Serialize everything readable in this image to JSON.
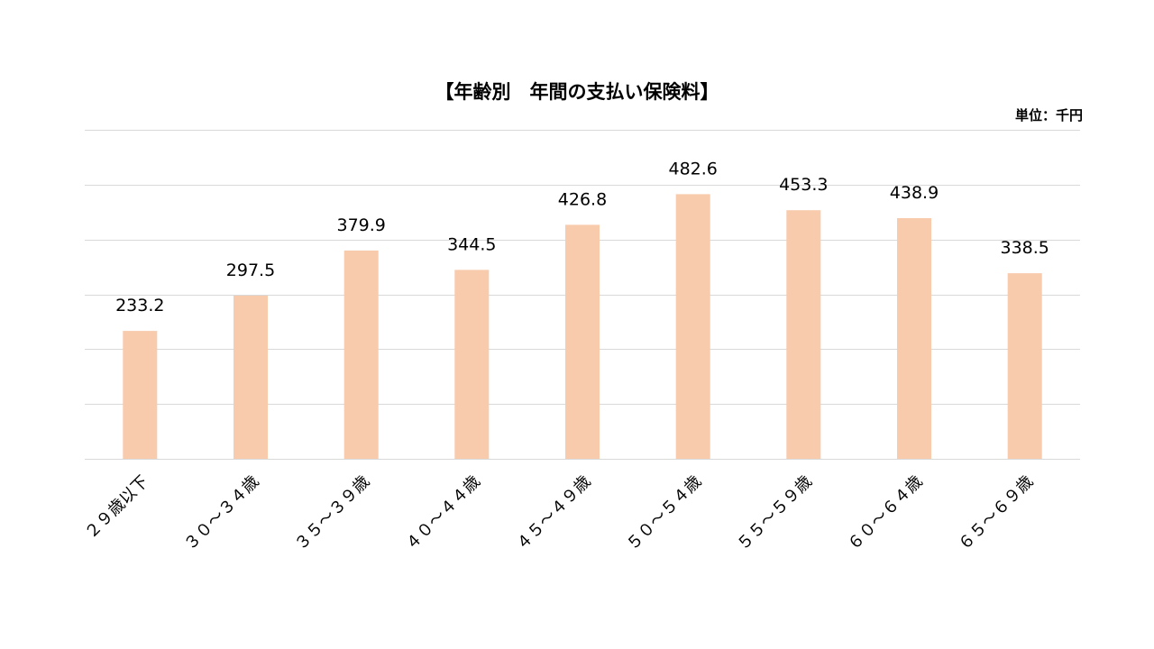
{
  "chart_data": {
    "type": "bar",
    "title": "【年齢別　年間の支払い保険料】",
    "unit_label": "単位：千円",
    "categories": [
      "２９歳以下",
      "３０～３４歳",
      "３５～３９歳",
      "４０～４４歳",
      "４５～４９歳",
      "５０～５４歳",
      "５５～５９歳",
      "６０～６４歳",
      "６５～６９歳"
    ],
    "values": [
      233.2,
      297.5,
      379.9,
      344.5,
      426.8,
      482.6,
      453.3,
      438.9,
      338.5
    ],
    "value_labels": [
      "233.2",
      "297.5",
      "379.9",
      "344.5",
      "426.8",
      "482.6",
      "453.3",
      "438.9",
      "338.5"
    ],
    "ylim": [
      0,
      600
    ],
    "gridlines": [
      0,
      100,
      200,
      300,
      400,
      500,
      600
    ],
    "grid": true,
    "legend": "none",
    "bar_color": "#F8CBAD",
    "grid_color": "#D9D9D9"
  }
}
